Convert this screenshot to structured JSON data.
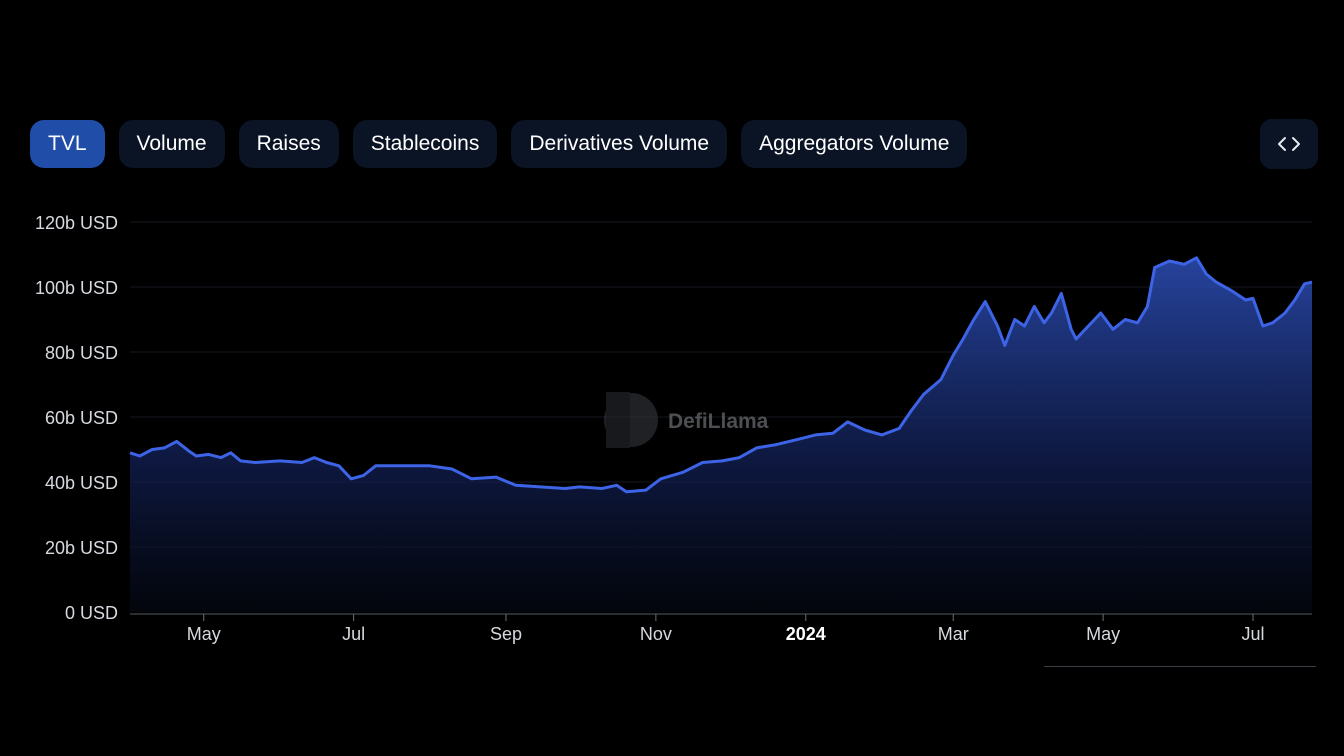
{
  "tabs": [
    {
      "label": "TVL",
      "active": true
    },
    {
      "label": "Volume",
      "active": false
    },
    {
      "label": "Raises",
      "active": false
    },
    {
      "label": "Stablecoins",
      "active": false
    },
    {
      "label": "Derivatives Volume",
      "active": false
    },
    {
      "label": "Aggregators Volume",
      "active": false
    }
  ],
  "embed_button": {
    "icon": "code-icon"
  },
  "watermark": "DefiLlama",
  "colors": {
    "accent": "#3d64e6",
    "active_tab": "#1f4da8",
    "tab_bg": "#0b1425",
    "background": "#000000"
  },
  "chart_data": {
    "type": "area",
    "title": "",
    "xlabel": "",
    "ylabel": "",
    "ylim": [
      0,
      120
    ],
    "y_ticks": [
      {
        "value": 0,
        "label": "0 USD"
      },
      {
        "value": 20,
        "label": "20b USD"
      },
      {
        "value": 40,
        "label": "40b USD"
      },
      {
        "value": 60,
        "label": "60b USD"
      },
      {
        "value": 80,
        "label": "80b USD"
      },
      {
        "value": 100,
        "label": "100b USD"
      },
      {
        "value": 120,
        "label": "120b USD"
      }
    ],
    "xlim": [
      "2023-04-01",
      "2024-07-25"
    ],
    "x_ticks": [
      {
        "date": "2023-05-01",
        "label": "May",
        "bold": false
      },
      {
        "date": "2023-07-01",
        "label": "Jul",
        "bold": false
      },
      {
        "date": "2023-09-01",
        "label": "Sep",
        "bold": false
      },
      {
        "date": "2023-11-01",
        "label": "Nov",
        "bold": false
      },
      {
        "date": "2024-01-01",
        "label": "2024",
        "bold": true
      },
      {
        "date": "2024-03-01",
        "label": "Mar",
        "bold": false
      },
      {
        "date": "2024-05-01",
        "label": "May",
        "bold": false
      },
      {
        "date": "2024-07-01",
        "label": "Jul",
        "bold": false
      }
    ],
    "grid": true,
    "series": [
      {
        "points": [
          [
            "2023-04-01",
            49
          ],
          [
            "2023-04-05",
            48
          ],
          [
            "2023-04-10",
            50
          ],
          [
            "2023-04-15",
            50.5
          ],
          [
            "2023-04-20",
            52.5
          ],
          [
            "2023-04-25",
            49.5
          ],
          [
            "2023-04-28",
            48
          ],
          [
            "2023-05-03",
            48.5
          ],
          [
            "2023-05-08",
            47.5
          ],
          [
            "2023-05-12",
            49
          ],
          [
            "2023-05-16",
            46.5
          ],
          [
            "2023-05-22",
            46
          ],
          [
            "2023-06-01",
            46.5
          ],
          [
            "2023-06-10",
            46
          ],
          [
            "2023-06-15",
            47.5
          ],
          [
            "2023-06-20",
            46
          ],
          [
            "2023-06-25",
            45
          ],
          [
            "2023-06-30",
            41
          ],
          [
            "2023-07-05",
            42
          ],
          [
            "2023-07-10",
            45
          ],
          [
            "2023-07-20",
            45
          ],
          [
            "2023-08-01",
            45
          ],
          [
            "2023-08-10",
            44
          ],
          [
            "2023-08-18",
            41
          ],
          [
            "2023-08-28",
            41.5
          ],
          [
            "2023-09-05",
            39
          ],
          [
            "2023-09-15",
            38.5
          ],
          [
            "2023-09-25",
            38
          ],
          [
            "2023-10-01",
            38.5
          ],
          [
            "2023-10-10",
            38
          ],
          [
            "2023-10-16",
            39
          ],
          [
            "2023-10-20",
            37
          ],
          [
            "2023-10-28",
            37.5
          ],
          [
            "2023-11-03",
            41
          ],
          [
            "2023-11-12",
            43
          ],
          [
            "2023-11-20",
            46
          ],
          [
            "2023-11-28",
            46.5
          ],
          [
            "2023-12-05",
            47.5
          ],
          [
            "2023-12-12",
            50.5
          ],
          [
            "2023-12-20",
            51.5
          ],
          [
            "2023-12-28",
            53
          ],
          [
            "2024-01-05",
            54.5
          ],
          [
            "2024-01-12",
            55
          ],
          [
            "2024-01-18",
            58.5
          ],
          [
            "2024-01-25",
            56
          ],
          [
            "2024-02-01",
            54.5
          ],
          [
            "2024-02-08",
            56.5
          ],
          [
            "2024-02-13",
            62
          ],
          [
            "2024-02-18",
            67
          ],
          [
            "2024-02-25",
            71.5
          ],
          [
            "2024-03-01",
            79
          ],
          [
            "2024-03-05",
            84
          ],
          [
            "2024-03-09",
            89.5
          ],
          [
            "2024-03-14",
            95.5
          ],
          [
            "2024-03-19",
            88
          ],
          [
            "2024-03-22",
            82
          ],
          [
            "2024-03-26",
            90
          ],
          [
            "2024-03-30",
            88
          ],
          [
            "2024-04-03",
            94
          ],
          [
            "2024-04-07",
            89
          ],
          [
            "2024-04-10",
            92
          ],
          [
            "2024-04-14",
            98
          ],
          [
            "2024-04-18",
            87
          ],
          [
            "2024-04-20",
            84
          ],
          [
            "2024-04-25",
            88
          ],
          [
            "2024-04-30",
            92
          ],
          [
            "2024-05-05",
            87
          ],
          [
            "2024-05-10",
            90
          ],
          [
            "2024-05-15",
            89
          ],
          [
            "2024-05-19",
            94
          ],
          [
            "2024-05-22",
            106
          ],
          [
            "2024-05-28",
            108
          ],
          [
            "2024-06-03",
            107
          ],
          [
            "2024-06-08",
            109
          ],
          [
            "2024-06-12",
            104
          ],
          [
            "2024-06-16",
            101.5
          ],
          [
            "2024-06-22",
            99
          ],
          [
            "2024-06-28",
            96
          ],
          [
            "2024-07-01",
            96.5
          ],
          [
            "2024-07-05",
            88
          ],
          [
            "2024-07-09",
            89
          ],
          [
            "2024-07-14",
            92
          ],
          [
            "2024-07-18",
            96
          ],
          [
            "2024-07-22",
            101
          ],
          [
            "2024-07-25",
            101.5
          ]
        ]
      }
    ]
  }
}
